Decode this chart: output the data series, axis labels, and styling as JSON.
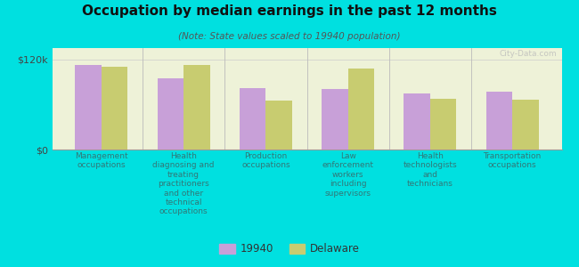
{
  "title": "Occupation by median earnings in the past 12 months",
  "subtitle": "(Note: State values scaled to 19940 population)",
  "background_color": "#00e0e0",
  "plot_bg_color": "#eef2d8",
  "categories": [
    "Management\noccupations",
    "Health\ndiagnosing and\ntreating\npractitioners\nand other\ntechnical\noccupations",
    "Production\noccupations",
    "Law\nenforcement\nworkers\nincluding\nsupervisors",
    "Health\ntechnologists\nand\ntechnicians",
    "Transportation\noccupations"
  ],
  "values_19940": [
    113000,
    95000,
    82000,
    80000,
    75000,
    77000
  ],
  "values_delaware": [
    110000,
    112000,
    65000,
    108000,
    68000,
    66000
  ],
  "color_19940": "#c8a0d8",
  "color_delaware": "#c8cc70",
  "ytick_vals": [
    0,
    120000
  ],
  "ytick_labels": [
    "$0",
    "$120k"
  ],
  "legend_label_19940": "19940",
  "legend_label_delaware": "Delaware",
  "watermark": "City-Data.com",
  "ylim": [
    0,
    135000
  ]
}
